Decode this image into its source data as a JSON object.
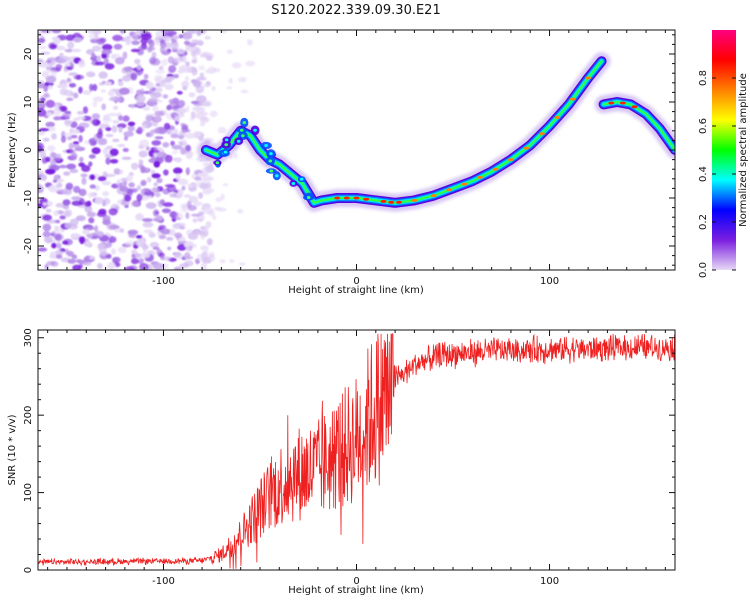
{
  "title": "S120.2022.339.09.30.E21",
  "chart_data": [
    {
      "type": "heatmap",
      "title": "S120.2022.339.09.30.E21",
      "xlabel": "Height of straight line (km)",
      "ylabel": "Frequency (Hz)",
      "xlim": [
        -165,
        165
      ],
      "ylim": [
        -25,
        25
      ],
      "x_ticks": [
        -100,
        0,
        100
      ],
      "y_ticks": [
        -20,
        -10,
        0,
        10,
        20
      ],
      "noise_region_x": [
        -165,
        -78
      ],
      "ridge": [
        {
          "x": -78,
          "y": 0
        },
        {
          "x": -72,
          "y": -1
        },
        {
          "x": -66,
          "y": 1
        },
        {
          "x": -60,
          "y": 4
        },
        {
          "x": -55,
          "y": 3
        },
        {
          "x": -50,
          "y": 0
        },
        {
          "x": -45,
          "y": -2
        },
        {
          "x": -40,
          "y": -3
        },
        {
          "x": -34,
          "y": -5
        },
        {
          "x": -28,
          "y": -7
        },
        {
          "x": -22,
          "y": -11
        },
        {
          "x": -18,
          "y": -10.5
        },
        {
          "x": -10,
          "y": -10
        },
        {
          "x": 0,
          "y": -10
        },
        {
          "x": 10,
          "y": -10.5
        },
        {
          "x": 20,
          "y": -11
        },
        {
          "x": 30,
          "y": -10.5
        },
        {
          "x": 40,
          "y": -9.5
        },
        {
          "x": 50,
          "y": -8
        },
        {
          "x": 60,
          "y": -6.5
        },
        {
          "x": 70,
          "y": -4.5
        },
        {
          "x": 80,
          "y": -2
        },
        {
          "x": 90,
          "y": 1
        },
        {
          "x": 100,
          "y": 5
        },
        {
          "x": 110,
          "y": 9.5
        },
        {
          "x": 120,
          "y": 15
        },
        {
          "x": 127,
          "y": 18.5
        }
      ],
      "ridge2": [
        {
          "x": 128,
          "y": 9.5
        },
        {
          "x": 135,
          "y": 10
        },
        {
          "x": 142,
          "y": 9.5
        },
        {
          "x": 150,
          "y": 7.5
        },
        {
          "x": 157,
          "y": 4.5
        },
        {
          "x": 165,
          "y": 0
        }
      ],
      "colorbar": {
        "label": "Normalized spectral amplitude",
        "range": [
          0,
          1
        ],
        "ticks": [
          "0.0",
          "0.2",
          "0.4",
          "0.6",
          "0.8"
        ],
        "tick_values": [
          0.0,
          0.2,
          0.4,
          0.6,
          0.8
        ],
        "colors": [
          "#e6d9f5",
          "#7b1fe0",
          "#0000ff",
          "#00ffff",
          "#00ff00",
          "#ffff00",
          "#ff8000",
          "#ff0000",
          "#ff007f"
        ]
      }
    },
    {
      "type": "line",
      "xlabel": "Height of straight line (km)",
      "ylabel": "SNR (10 * v/v)",
      "xlim": [
        -165,
        165
      ],
      "ylim": [
        0,
        310
      ],
      "x_ticks": [
        -100,
        0,
        100
      ],
      "y_ticks": [
        0,
        100,
        200,
        300
      ],
      "color": "#ee2020",
      "envelope": [
        {
          "x": -165,
          "y": 10
        },
        {
          "x": -80,
          "y": 12
        },
        {
          "x": -70,
          "y": 20
        },
        {
          "x": -60,
          "y": 45
        },
        {
          "x": -50,
          "y": 80
        },
        {
          "x": -40,
          "y": 110
        },
        {
          "x": -30,
          "y": 125
        },
        {
          "x": -20,
          "y": 130
        },
        {
          "x": -10,
          "y": 150
        },
        {
          "x": 0,
          "y": 170
        },
        {
          "x": 10,
          "y": 210
        },
        {
          "x": 20,
          "y": 245
        },
        {
          "x": 30,
          "y": 265
        },
        {
          "x": 45,
          "y": 278
        },
        {
          "x": 70,
          "y": 283
        },
        {
          "x": 100,
          "y": 285
        },
        {
          "x": 165,
          "y": 288
        }
      ]
    }
  ]
}
